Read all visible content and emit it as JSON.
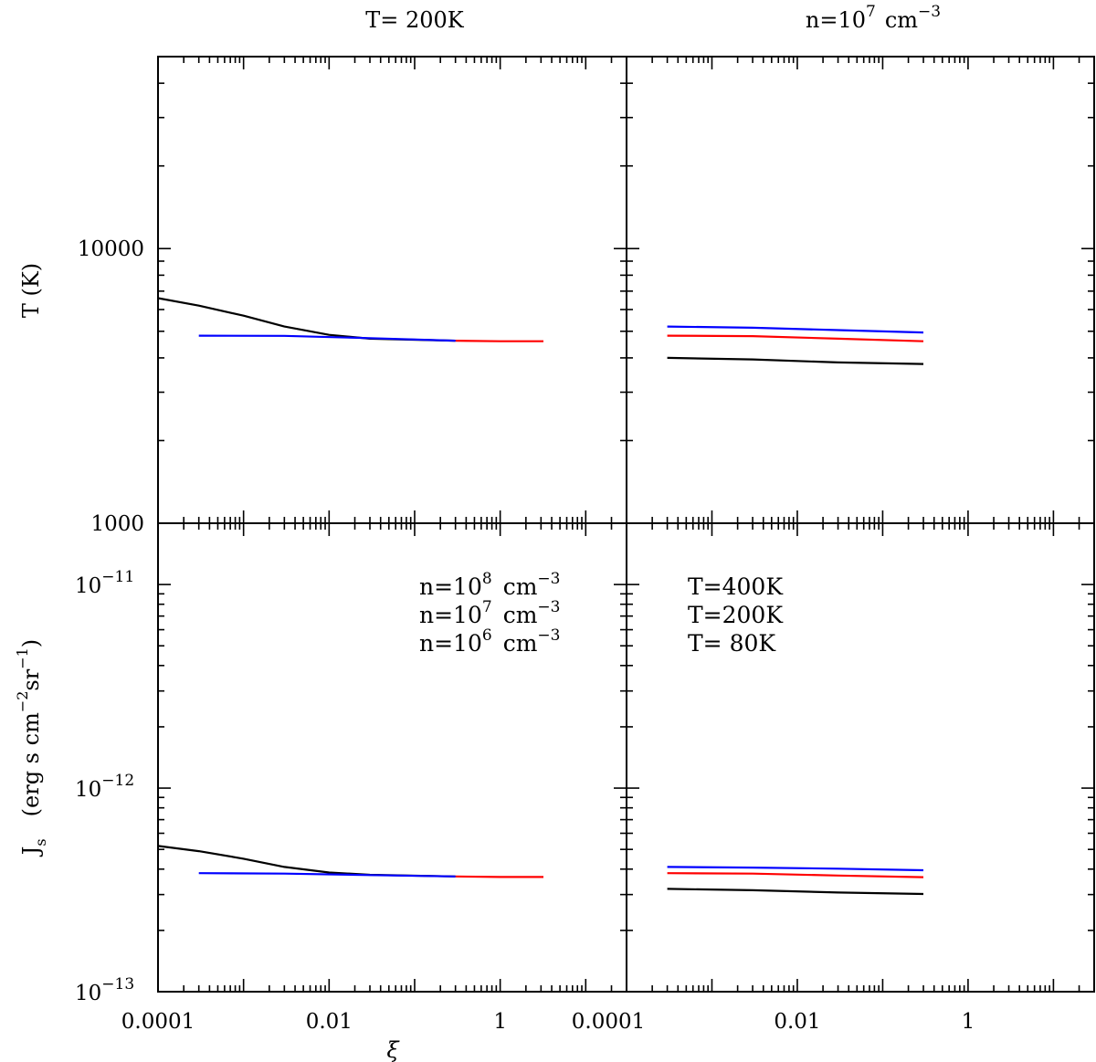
{
  "chart_data": [
    {
      "type": "line",
      "panel": "top-left",
      "title": "T= 200K",
      "ylabel": "T (K)",
      "xscale": "log",
      "yscale": "log",
      "xlim": [
        0.0001,
        30
      ],
      "ylim": [
        1000,
        50000
      ],
      "yticklabels": [
        "1000",
        "10000"
      ],
      "series": [
        {
          "name": "n=10^6 cm^-3",
          "color": "#000000",
          "x": [
            0.0001,
            0.0003,
            0.001,
            0.003,
            0.01,
            0.03,
            0.3
          ],
          "y": [
            6600,
            6200,
            5700,
            5200,
            4850,
            4700,
            4620
          ]
        },
        {
          "name": "n=10^7 cm^-3",
          "color": "#ff0000",
          "x": [
            0.3,
            1,
            3.2
          ],
          "y": [
            4620,
            4600,
            4600
          ]
        },
        {
          "name": "n=10^8 cm^-3",
          "color": "#0000ff",
          "x": [
            0.0003,
            0.003,
            0.03,
            0.3
          ],
          "y": [
            4820,
            4810,
            4720,
            4620
          ]
        }
      ]
    },
    {
      "type": "line",
      "panel": "top-right",
      "title": "n=10^7 cm^-3",
      "title_parts": {
        "base": "n=10",
        "exp": "7",
        "unit": "cm",
        "unit_exp": "−3"
      },
      "xscale": "log",
      "yscale": "log",
      "xlim": [
        0.0001,
        30
      ],
      "ylim": [
        1000,
        50000
      ],
      "series": [
        {
          "name": "T=400K",
          "color": "#0000ff",
          "x": [
            0.0003,
            0.003,
            0.03,
            0.3
          ],
          "y": [
            5200,
            5150,
            5050,
            4950
          ]
        },
        {
          "name": "T=200K",
          "color": "#ff0000",
          "x": [
            0.0003,
            0.003,
            0.03,
            0.3
          ],
          "y": [
            4820,
            4800,
            4700,
            4600
          ]
        },
        {
          "name": "T= 80K",
          "color": "#000000",
          "x": [
            0.0003,
            0.003,
            0.03,
            0.3
          ],
          "y": [
            4000,
            3950,
            3850,
            3800
          ]
        }
      ]
    },
    {
      "type": "line",
      "panel": "bottom-left",
      "ylabel": "J_s (erg s cm^-2 sr^-1)",
      "ylabel_parts": {
        "j": "J",
        "s": "s",
        "main": "(erg s cm",
        "e1": "−2",
        "sr": "sr",
        "e2": "−1",
        "close": ")"
      },
      "xlabel": "ξ",
      "xscale": "log",
      "yscale": "log",
      "xlim": [
        0.0001,
        30
      ],
      "ylim": [
        1e-13,
        2e-11
      ],
      "xticklabels": [
        "0.0001",
        "0.01",
        "1"
      ],
      "yticklabels": [
        {
          "base": "10",
          "exp": "−11"
        },
        {
          "base": "10",
          "exp": "−12"
        },
        {
          "base": "10",
          "exp": "−13"
        }
      ],
      "legend": [
        {
          "base": "n=10",
          "exp": "8",
          "unit": "cm",
          "unit_exp": "−3",
          "color": "#0000ff"
        },
        {
          "base": "n=10",
          "exp": "7",
          "unit": "cm",
          "unit_exp": "−3",
          "color": "#ff0000"
        },
        {
          "base": "n=10",
          "exp": "6",
          "unit": "cm",
          "unit_exp": "−3",
          "color": "#000000"
        }
      ],
      "series": [
        {
          "name": "n=10^6 cm^-3",
          "color": "#000000",
          "x": [
            0.0001,
            0.0003,
            0.001,
            0.003,
            0.01,
            0.03,
            0.3
          ],
          "y": [
            5.2e-13,
            4.9e-13,
            4.5e-13,
            4.1e-13,
            3.85e-13,
            3.75e-13,
            3.68e-13
          ]
        },
        {
          "name": "n=10^7 cm^-3",
          "color": "#ff0000",
          "x": [
            0.3,
            1,
            3.2
          ],
          "y": [
            3.68e-13,
            3.66e-13,
            3.66e-13
          ]
        },
        {
          "name": "n=10^8 cm^-3",
          "color": "#0000ff",
          "x": [
            0.0003,
            0.003,
            0.03,
            0.3
          ],
          "y": [
            3.82e-13,
            3.8e-13,
            3.74e-13,
            3.68e-13
          ]
        }
      ]
    },
    {
      "type": "line",
      "panel": "bottom-right",
      "xscale": "log",
      "yscale": "log",
      "xlim": [
        0.0001,
        30
      ],
      "ylim": [
        1e-13,
        2e-11
      ],
      "xticklabels": [
        "0.0001",
        "0.01",
        "1"
      ],
      "legend": [
        {
          "label": "T=400K",
          "color": "#0000ff"
        },
        {
          "label": "T=200K",
          "color": "#ff0000"
        },
        {
          "label": "T= 80K",
          "color": "#000000"
        }
      ],
      "series": [
        {
          "name": "T=400K",
          "color": "#0000ff",
          "x": [
            0.0003,
            0.003,
            0.03,
            0.3
          ],
          "y": [
            4.1e-13,
            4.07e-13,
            4.02e-13,
            3.95e-13
          ]
        },
        {
          "name": "T=200K",
          "color": "#ff0000",
          "x": [
            0.0003,
            0.003,
            0.03,
            0.3
          ],
          "y": [
            3.82e-13,
            3.8e-13,
            3.72e-13,
            3.65e-13
          ]
        },
        {
          "name": "T= 80K",
          "color": "#000000",
          "x": [
            0.0003,
            0.003,
            0.03,
            0.3
          ],
          "y": [
            3.2e-13,
            3.15e-13,
            3.07e-13,
            3.02e-13
          ]
        }
      ]
    }
  ]
}
